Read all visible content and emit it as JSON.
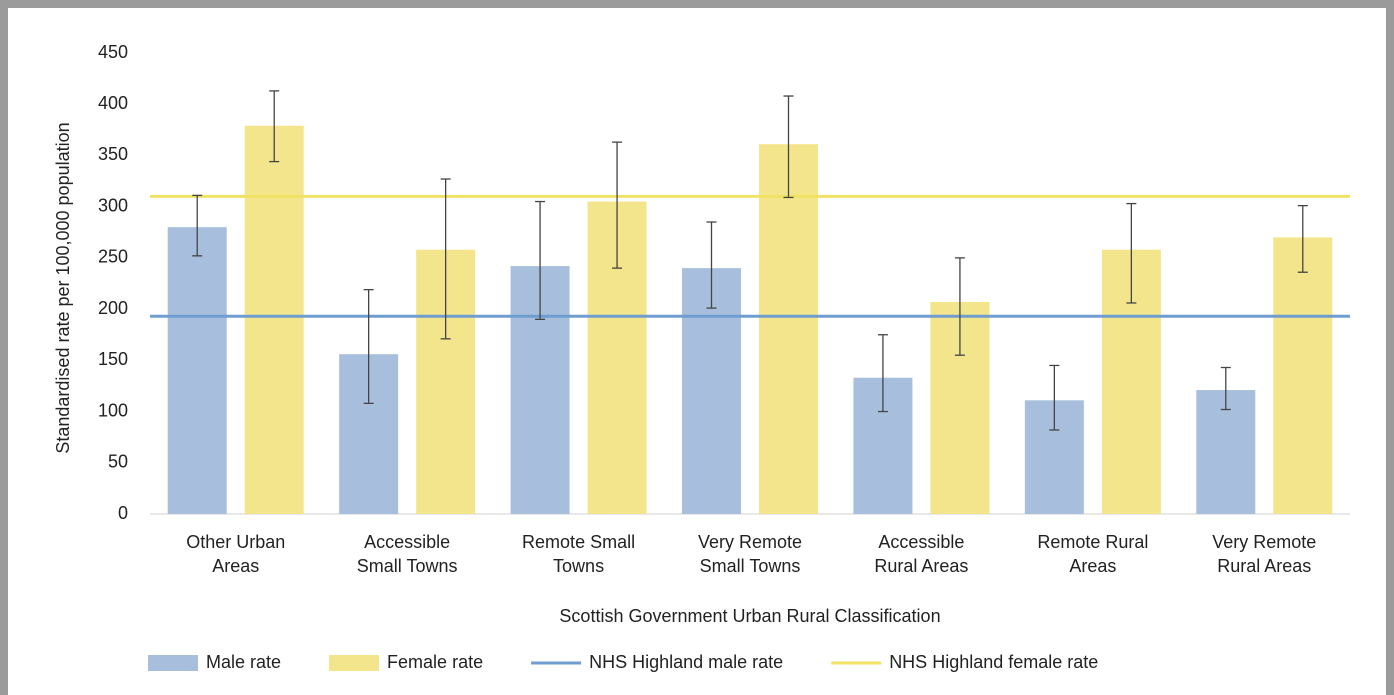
{
  "chart_data": {
    "type": "bar",
    "y_label": "Standardised rate per 100,000  population",
    "x_label": "Scottish Government  Urban  Rural  Classification",
    "categories": [
      [
        "Other Urban",
        "Areas"
      ],
      [
        "Accessible",
        "Small Towns"
      ],
      [
        "Remote Small",
        "Towns"
      ],
      [
        "Very Remote",
        "Small Towns"
      ],
      [
        "Accessible",
        "Rural Areas"
      ],
      [
        "Remote Rural",
        "Areas"
      ],
      [
        "Very Remote",
        "Rural Areas"
      ]
    ],
    "series": [
      {
        "name": "Male rate",
        "color": "#a7bfdd",
        "values": [
          280,
          156,
          242,
          240,
          133,
          111,
          121
        ],
        "lower": [
          252,
          108,
          190,
          201,
          100,
          82,
          102
        ],
        "upper": [
          311,
          219,
          305,
          285,
          175,
          145,
          143
        ]
      },
      {
        "name": "Female rate",
        "color": "#f3e58b",
        "values": [
          379,
          258,
          305,
          361,
          207,
          258,
          270
        ],
        "lower": [
          344,
          171,
          240,
          309,
          155,
          206,
          236
        ],
        "upper": [
          413,
          327,
          363,
          408,
          250,
          303,
          301
        ]
      }
    ],
    "reference_lines": [
      {
        "name": "NHS Highland male rate",
        "color": "#6f9dd0",
        "value": 193
      },
      {
        "name": "NHS Highland female rate",
        "color": "#f1e264",
        "value": 310
      }
    ],
    "ylim": [
      0,
      450
    ],
    "yticks": [
      0,
      50,
      100,
      150,
      200,
      250,
      300,
      350,
      400,
      450
    ],
    "legend": "bottom"
  }
}
